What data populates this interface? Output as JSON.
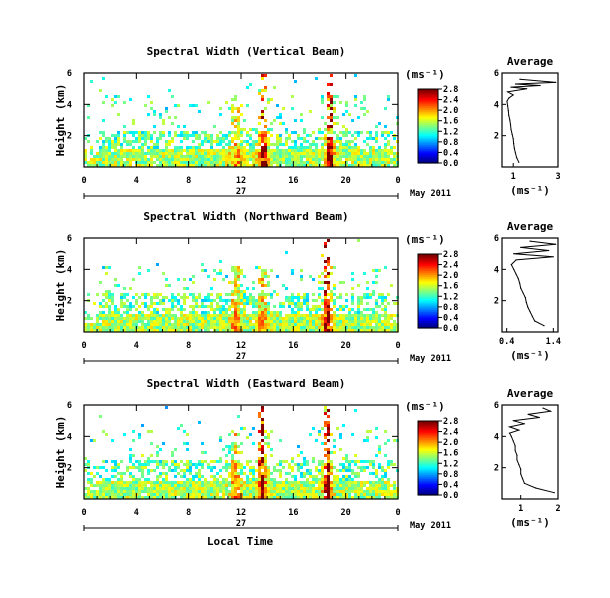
{
  "chart_data": [
    {
      "type": "heatmap",
      "title": "Spectral Width (Vertical Beam)",
      "ylabel": "Height (km)",
      "y_ticks": [
        "2",
        "4",
        "6"
      ],
      "ylim": [
        0,
        6
      ],
      "x_ticks": [
        "0",
        "4",
        "8",
        "12",
        "16",
        "20",
        "0"
      ],
      "xlim": [
        0,
        24
      ],
      "date_day": "27",
      "date_label": "May 2011",
      "colorbar": {
        "label": "(ms⁻¹)",
        "ticks": [
          "0.0",
          "0.4",
          "0.8",
          "1.2",
          "1.6",
          "2.0",
          "2.4",
          "2.8"
        ],
        "range": [
          0,
          2.8
        ],
        "colormap": "jet"
      },
      "field": {
        "base_top_km": 1.2,
        "cloud_top_km": 2.4,
        "sparse_top_km": 4.6,
        "plume_hours": [
          11.5,
          13.6,
          18.7
        ],
        "hot_hours": [
          13.6,
          18.7
        ]
      },
      "average_profile": {
        "title": "Average",
        "xlabel": "(ms⁻¹)",
        "x_ticks": [
          "1",
          "3"
        ],
        "xlim": [
          0.5,
          3
        ],
        "y_ticks": [
          "2",
          "4",
          "6"
        ],
        "ylim": [
          0,
          6
        ],
        "heights_km": [
          0.3,
          0.6,
          0.9,
          1.2,
          1.5,
          1.8,
          2.1,
          2.4,
          2.7,
          3.0,
          3.3,
          3.6,
          3.9,
          4.2,
          4.4,
          4.6,
          4.8,
          5.0,
          5.1,
          5.2,
          5.3,
          5.4,
          5.6
        ],
        "values": [
          1.25,
          1.15,
          1.1,
          1.05,
          1.02,
          1.0,
          0.95,
          0.9,
          0.88,
          0.85,
          0.8,
          0.78,
          0.75,
          0.72,
          0.8,
          1.0,
          0.75,
          1.6,
          0.9,
          2.2,
          1.1,
          2.9,
          1.3
        ]
      }
    },
    {
      "type": "heatmap",
      "title": "Spectral Width (Northward Beam)",
      "ylabel": "Height (km)",
      "y_ticks": [
        "2",
        "4",
        "6"
      ],
      "ylim": [
        0,
        6
      ],
      "x_ticks": [
        "0",
        "4",
        "8",
        "12",
        "16",
        "20",
        "0"
      ],
      "xlim": [
        0,
        24
      ],
      "date_day": "27",
      "date_label": "May 2011",
      "colorbar": {
        "label": "(ms⁻¹)",
        "ticks": [
          "0.0",
          "0.4",
          "0.8",
          "1.2",
          "1.6",
          "2.0",
          "2.4",
          "2.8"
        ],
        "range": [
          0,
          2.8
        ],
        "colormap": "jet"
      },
      "field": {
        "base_top_km": 1.2,
        "cloud_top_km": 2.6,
        "sparse_top_km": 4.4,
        "plume_hours": [
          11.5,
          13.5,
          18.5
        ],
        "hot_hours": [
          18.5
        ]
      },
      "average_profile": {
        "title": "Average",
        "xlabel": "(ms⁻¹)",
        "x_ticks": [
          "0.4",
          "1.4"
        ],
        "xlim": [
          0.3,
          1.5
        ],
        "y_ticks": [
          "2",
          "4",
          "6"
        ],
        "ylim": [
          0,
          6
        ],
        "heights_km": [
          0.4,
          0.7,
          1.0,
          1.3,
          1.6,
          1.9,
          2.2,
          2.5,
          2.8,
          3.1,
          3.4,
          3.7,
          4.0,
          4.3,
          4.6,
          4.8,
          5.0,
          5.2,
          5.4,
          5.6,
          5.8
        ],
        "values": [
          1.2,
          1.0,
          0.95,
          0.9,
          0.85,
          0.82,
          0.8,
          0.75,
          0.7,
          0.68,
          0.65,
          0.6,
          0.55,
          0.5,
          0.6,
          1.4,
          0.55,
          1.3,
          0.7,
          1.45,
          0.9
        ]
      }
    },
    {
      "type": "heatmap",
      "title": "Spectral Width (Eastward Beam)",
      "ylabel": "Height (km)",
      "y_ticks": [
        "2",
        "4",
        "6"
      ],
      "ylim": [
        0,
        6
      ],
      "x_ticks": [
        "0",
        "4",
        "8",
        "12",
        "16",
        "20",
        "0"
      ],
      "xlim": [
        0,
        24
      ],
      "date_day": "27",
      "date_label": "May 2011",
      "xlabel": "Local Time",
      "colorbar": {
        "label": "(ms⁻¹)",
        "ticks": [
          "0.0",
          "0.4",
          "0.8",
          "1.2",
          "1.6",
          "2.0",
          "2.4",
          "2.8"
        ],
        "range": [
          0,
          2.8
        ],
        "colormap": "jet"
      },
      "field": {
        "base_top_km": 1.2,
        "cloud_top_km": 2.6,
        "sparse_top_km": 4.6,
        "plume_hours": [
          11.5,
          13.5,
          18.5
        ],
        "hot_hours": [
          13.5,
          18.5
        ]
      },
      "average_profile": {
        "title": "Average",
        "xlabel": "(ms⁻¹)",
        "x_ticks": [
          "1",
          "2"
        ],
        "xlim": [
          0.5,
          2
        ],
        "y_ticks": [
          "2",
          "4",
          "6"
        ],
        "ylim": [
          0,
          6
        ],
        "heights_km": [
          0.4,
          0.7,
          1.0,
          1.3,
          1.6,
          1.9,
          2.2,
          2.5,
          2.8,
          3.1,
          3.4,
          3.7,
          4.0,
          4.2,
          4.4,
          4.6,
          4.8,
          5.0,
          5.2,
          5.4,
          5.6,
          5.8
        ],
        "values": [
          1.9,
          1.4,
          1.1,
          1.05,
          1.0,
          1.0,
          0.95,
          0.9,
          0.9,
          0.85,
          0.85,
          0.8,
          0.75,
          0.7,
          0.95,
          0.7,
          1.1,
          0.8,
          1.5,
          1.2,
          1.8,
          1.6
        ]
      }
    }
  ]
}
